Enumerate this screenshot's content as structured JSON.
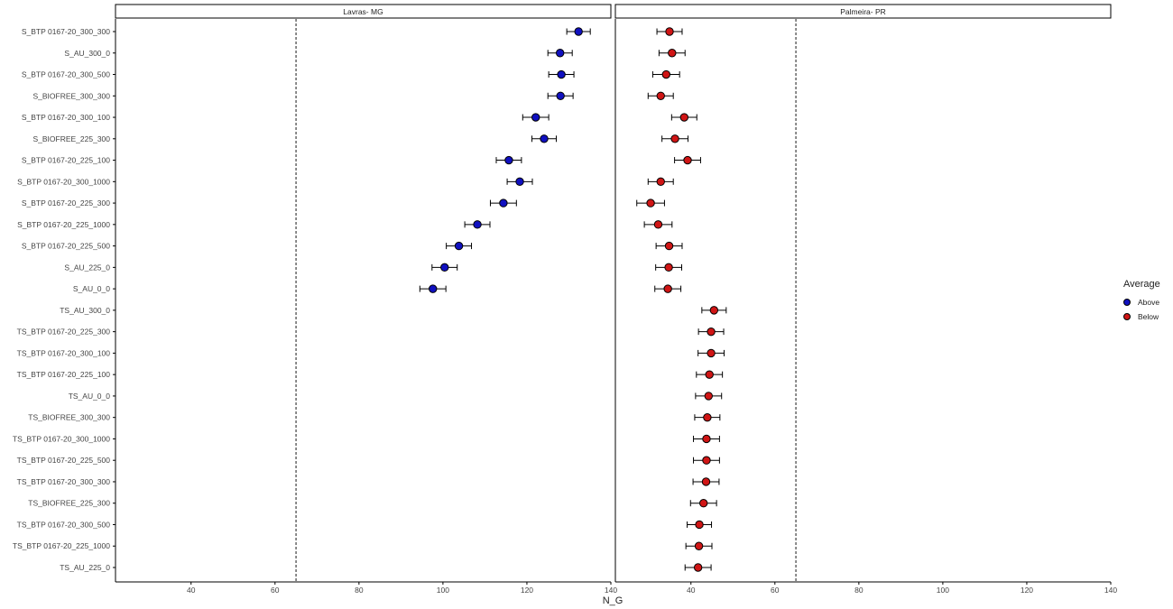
{
  "chart_data": {
    "type": "scatter",
    "subtype": "point-with-error-bars, faceted",
    "xlabel": "N_G",
    "ylabel": "",
    "xlim": [
      22,
      140
    ],
    "xticks": [
      40,
      60,
      80,
      100,
      120,
      140
    ],
    "reference_line_x": 65,
    "grid": false,
    "legend": {
      "title": "Average",
      "placement": "right",
      "entries": [
        {
          "name": "Above",
          "color": "#1010c0"
        },
        {
          "name": "Below",
          "color": "#d01515"
        }
      ]
    },
    "categories": [
      "S_BTP 0167-20_300_300",
      "S_AU_300_0",
      "S_BTP 0167-20_300_500",
      "S_BIOFREE_300_300",
      "S_BTP 0167-20_300_100",
      "S_BIOFREE_225_300",
      "S_BTP 0167-20_225_100",
      "S_BTP 0167-20_300_1000",
      "S_BTP 0167-20_225_300",
      "S_BTP 0167-20_225_1000",
      "S_BTP 0167-20_225_500",
      "S_AU_225_0",
      "S_AU_0_0",
      "TS_AU_300_0",
      "TS_BTP 0167-20_225_300",
      "TS_BTP 0167-20_300_100",
      "TS_BTP 0167-20_225_100",
      "TS_AU_0_0",
      "TS_BIOFREE_300_300",
      "TS_BTP 0167-20_300_1000",
      "TS_BTP 0167-20_225_500",
      "TS_BTP 0167-20_300_300",
      "TS_BIOFREE_225_300",
      "TS_BTP 0167-20_300_500",
      "TS_BTP 0167-20_225_1000",
      "TS_AU_225_0"
    ],
    "facets": [
      {
        "name": "Lavras- MG",
        "mean": [
          132.3,
          127.9,
          128.2,
          128.0,
          122.1,
          124.1,
          115.7,
          118.3,
          114.4,
          108.2,
          103.8,
          100.4,
          97.6,
          null,
          null,
          null,
          null,
          null,
          null,
          null,
          null,
          null,
          null,
          null,
          null,
          null
        ],
        "lower": [
          129.5,
          125.0,
          125.2,
          125.0,
          119.0,
          121.2,
          112.7,
          115.3,
          111.3,
          105.2,
          100.8,
          97.4,
          94.5,
          null,
          null,
          null,
          null,
          null,
          null,
          null,
          null,
          null,
          null,
          null,
          null,
          null
        ],
        "upper": [
          135.1,
          130.8,
          131.2,
          131.0,
          125.2,
          127.0,
          118.7,
          121.3,
          117.5,
          111.2,
          106.8,
          103.4,
          100.7,
          null,
          null,
          null,
          null,
          null,
          null,
          null,
          null,
          null,
          null,
          null,
          null,
          null
        ],
        "group": [
          "Above",
          "Above",
          "Above",
          "Above",
          "Above",
          "Above",
          "Above",
          "Above",
          "Above",
          "Above",
          "Above",
          "Above",
          "Above",
          null,
          null,
          null,
          null,
          null,
          null,
          null,
          null,
          null,
          null,
          null,
          null,
          null
        ]
      },
      {
        "name": "Palmeira- PR",
        "mean": [
          34.9,
          35.5,
          34.1,
          32.8,
          38.4,
          36.2,
          39.2,
          32.8,
          30.4,
          32.2,
          34.8,
          34.7,
          34.5,
          45.5,
          44.8,
          44.8,
          44.4,
          44.2,
          43.9,
          43.7,
          43.7,
          43.6,
          43.0,
          42.0,
          41.9,
          41.7
        ],
        "lower": [
          31.9,
          32.4,
          30.9,
          29.8,
          35.4,
          33.1,
          36.1,
          29.8,
          27.1,
          28.9,
          31.7,
          31.6,
          31.4,
          42.6,
          41.8,
          41.7,
          41.3,
          41.1,
          40.9,
          40.6,
          40.6,
          40.5,
          39.9,
          39.1,
          38.8,
          38.6
        ],
        "upper": [
          37.9,
          38.6,
          37.3,
          35.8,
          41.4,
          39.3,
          42.3,
          35.8,
          33.7,
          35.5,
          37.9,
          37.8,
          37.6,
          48.4,
          47.8,
          47.9,
          47.5,
          47.3,
          46.9,
          46.8,
          46.8,
          46.7,
          46.1,
          44.9,
          45.0,
          44.8
        ],
        "group": [
          "Below",
          "Below",
          "Below",
          "Below",
          "Below",
          "Below",
          "Below",
          "Below",
          "Below",
          "Below",
          "Below",
          "Below",
          "Below",
          "Below",
          "Below",
          "Below",
          "Below",
          "Below",
          "Below",
          "Below",
          "Below",
          "Below",
          "Below",
          "Below",
          "Below",
          "Below"
        ]
      }
    ],
    "colors": {
      "Above": "#1010c0",
      "Below": "#d01515"
    }
  }
}
